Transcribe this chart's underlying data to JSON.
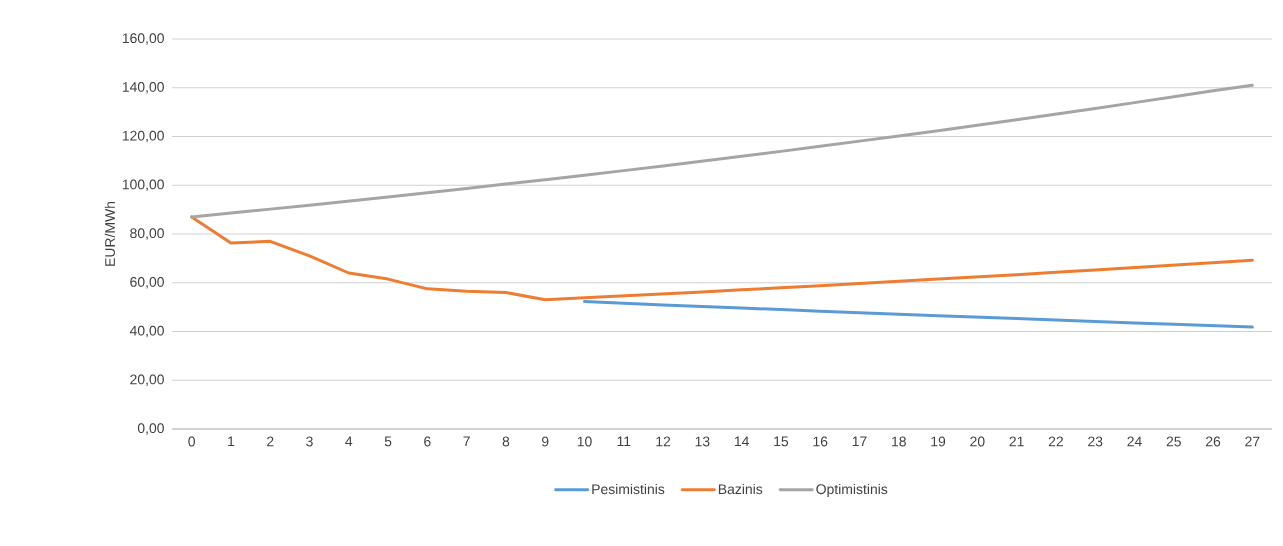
{
  "chart_data": {
    "type": "line",
    "ylabel": "EUR/MWh",
    "categories": [
      "0",
      "1",
      "2",
      "3",
      "4",
      "5",
      "6",
      "7",
      "8",
      "9",
      "10",
      "11",
      "12",
      "13",
      "14",
      "15",
      "16",
      "17",
      "18",
      "19",
      "20",
      "21",
      "22",
      "23",
      "24",
      "25",
      "26",
      "27"
    ],
    "series": [
      {
        "name": "Pesimistinis",
        "color": "#5b9bd5",
        "values": [
          null,
          null,
          null,
          null,
          null,
          null,
          null,
          null,
          null,
          null,
          52.3,
          51.6,
          50.9,
          50.3,
          49.6,
          49.0,
          48.3,
          47.7,
          47.1,
          46.5,
          45.9,
          45.3,
          44.7,
          44.1,
          43.5,
          43.0,
          42.4,
          41.8
        ]
      },
      {
        "name": "Bazinis",
        "color": "#ed7d31",
        "values": [
          87.0,
          76.3,
          77.0,
          71.0,
          64.0,
          61.5,
          57.5,
          56.5,
          56.0,
          53.0,
          53.8,
          54.6,
          55.4,
          56.2,
          57.1,
          57.9,
          58.8,
          59.7,
          60.6,
          61.5,
          62.4,
          63.3,
          64.3,
          65.2,
          66.2,
          67.2,
          68.2,
          69.2
        ]
      },
      {
        "name": "Optimistinis",
        "color": "#a5a5a5",
        "values": [
          87.0,
          88.6,
          90.2,
          91.8,
          93.5,
          95.2,
          96.9,
          98.7,
          100.5,
          102.3,
          104.1,
          106.0,
          107.9,
          109.9,
          111.9,
          113.9,
          116.0,
          118.1,
          120.2,
          122.4,
          124.6,
          126.9,
          129.2,
          131.5,
          133.9,
          136.3,
          138.8,
          141.0
        ]
      }
    ],
    "ylim": [
      0,
      160
    ],
    "yticks": [
      {
        "value": 0,
        "label": "0,00"
      },
      {
        "value": 20,
        "label": "20,00"
      },
      {
        "value": 40,
        "label": "40,00"
      },
      {
        "value": 60,
        "label": "60,00"
      },
      {
        "value": 80,
        "label": "80,00"
      },
      {
        "value": 100,
        "label": "100,00"
      },
      {
        "value": 120,
        "label": "120,00"
      },
      {
        "value": 140,
        "label": "140,00"
      },
      {
        "value": 160,
        "label": "160,00"
      }
    ],
    "grid": "y",
    "legend": "bottom",
    "marker": "none",
    "line_style": "solid"
  }
}
